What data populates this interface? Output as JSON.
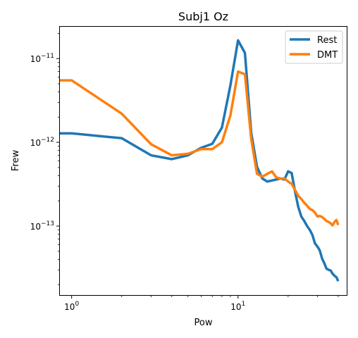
{
  "chart_data": {
    "type": "line",
    "title": "Subj1 Oz",
    "xlabel": "Pow",
    "ylabel": "Frew",
    "xscale": "log",
    "yscale": "log",
    "xlim": [
      0.85,
      45
    ],
    "ylim": [
      1.5e-14,
      2.4e-11
    ],
    "grid": false,
    "legend_position": "top-right",
    "x_ticks": [
      {
        "base": "10",
        "exp": "0",
        "value": 1
      },
      {
        "base": "10",
        "exp": "1",
        "value": 10
      }
    ],
    "y_ticks": [
      {
        "base": "10",
        "exp": "−11",
        "value": 1e-11
      },
      {
        "base": "10",
        "exp": "−12",
        "value": 1e-12
      },
      {
        "base": "10",
        "exp": "−13",
        "value": 1e-13
      }
    ],
    "series": [
      {
        "name": "Rest",
        "color": "#1f77b4",
        "x": [
          0.85,
          1,
          2,
          3,
          4,
          5,
          6,
          7,
          8,
          9,
          10,
          11,
          12,
          13,
          14,
          15,
          16,
          17,
          18,
          19,
          20,
          21,
          22,
          23,
          24,
          25,
          26,
          27,
          28,
          29,
          30,
          31,
          32,
          33,
          34,
          35,
          36,
          37,
          38,
          39,
          40
        ],
        "y": [
          1.28e-12,
          1.28e-12,
          1.12e-12,
          7e-13,
          6.3e-13,
          7e-13,
          8.6e-13,
          9.6e-13,
          1.5e-12,
          4.8e-12,
          1.65e-11,
          1.17e-11,
          1.3e-12,
          5.1e-13,
          3.7e-13,
          3.4e-13,
          3.5e-13,
          3.6e-13,
          3.7e-13,
          3.6e-13,
          4.5e-13,
          4.3e-13,
          2.6e-13,
          1.7e-13,
          1.3e-13,
          1.15e-13,
          1e-13,
          9e-14,
          7.8e-14,
          6.2e-14,
          5.7e-14,
          5.1e-14,
          4.1e-14,
          3.6e-14,
          3.1e-14,
          3e-14,
          2.95e-14,
          2.7e-14,
          2.55e-14,
          2.45e-14,
          2.2e-14
        ]
      },
      {
        "name": "DMT",
        "color": "#ff7f0e",
        "x": [
          0.85,
          1,
          2,
          3,
          4,
          5,
          6,
          7,
          8,
          9,
          10,
          11,
          12,
          13,
          14,
          15,
          16,
          17,
          18,
          19,
          20,
          21,
          22,
          23,
          24,
          25,
          26,
          27,
          28,
          29,
          30,
          31,
          32,
          33,
          34,
          35,
          36,
          37,
          38,
          39,
          40
        ],
        "y": [
          5.5e-12,
          5.5e-12,
          2.2e-12,
          9.5e-13,
          7e-13,
          7.3e-13,
          8.3e-13,
          8.3e-13,
          1e-12,
          2.1e-12,
          7e-12,
          6.5e-12,
          1.1e-12,
          4.2e-13,
          3.9e-13,
          4.2e-13,
          4.5e-13,
          3.8e-13,
          3.7e-13,
          3.7e-13,
          3.4e-13,
          3.2e-13,
          2.7e-13,
          2.3e-13,
          2.1e-13,
          1.9e-13,
          1.75e-13,
          1.6e-13,
          1.55e-13,
          1.45e-13,
          1.3e-13,
          1.32e-13,
          1.28e-13,
          1.22e-13,
          1.15e-13,
          1.12e-13,
          1.08e-13,
          1.02e-13,
          1.12e-13,
          1.18e-13,
          1.03e-13
        ]
      }
    ]
  }
}
